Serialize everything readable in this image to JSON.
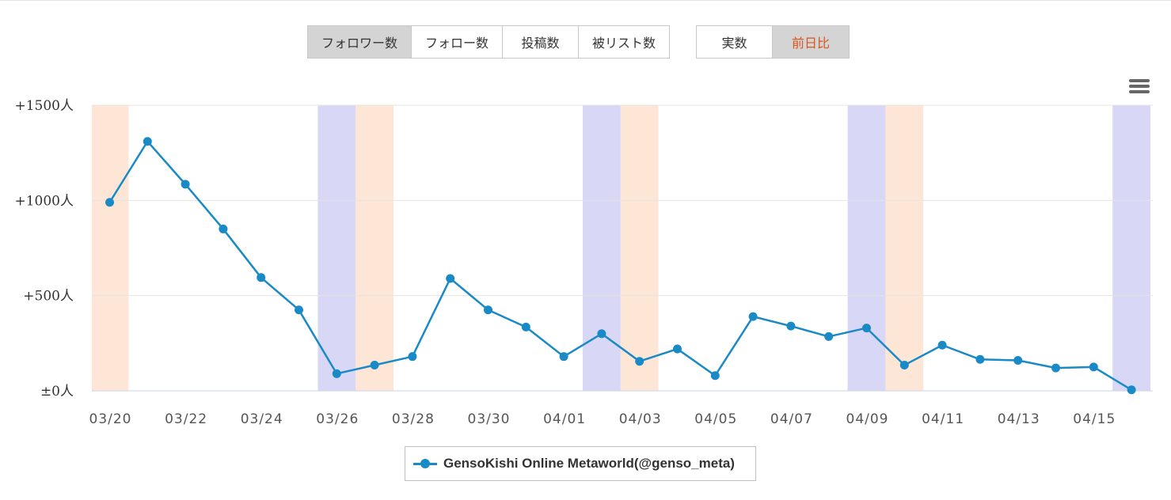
{
  "metric_buttons": [
    {
      "label": "フォロワー数",
      "active": true
    },
    {
      "label": "フォロー数",
      "active": false
    },
    {
      "label": "投稿数",
      "active": false
    },
    {
      "label": "被リスト数",
      "active": false
    }
  ],
  "mode_buttons": [
    {
      "label": "実数",
      "active": false
    },
    {
      "label": "前日比",
      "active": true
    }
  ],
  "colors": {
    "line": "#1a8ac6",
    "saturday_band": "#d8d8f6",
    "sunday_band": "#fde6d6",
    "active_button": "#d4d4d4",
    "accent_text": "#d9541e"
  },
  "icons": {
    "menu": "hamburger-menu-icon"
  },
  "chart_data": {
    "type": "line",
    "x": [
      "03/20",
      "03/21",
      "03/22",
      "03/23",
      "03/24",
      "03/25",
      "03/26",
      "03/27",
      "03/28",
      "03/29",
      "03/30",
      "03/31",
      "04/01",
      "04/02",
      "04/03",
      "04/04",
      "04/05",
      "04/06",
      "04/07",
      "04/08",
      "04/09",
      "04/10",
      "04/11",
      "04/12",
      "04/13",
      "04/14",
      "04/15",
      "04/16"
    ],
    "x_tick_labels": [
      "03/20",
      "03/22",
      "03/24",
      "03/26",
      "03/28",
      "03/30",
      "04/01",
      "04/03",
      "04/05",
      "04/07",
      "04/09",
      "04/11",
      "04/13",
      "04/15"
    ],
    "y_tick_labels": [
      "±0人",
      "+500人",
      "+1000人",
      "+1500人"
    ],
    "y_ticks": [
      0,
      500,
      1000,
      1500
    ],
    "ylim": [
      0,
      1500
    ],
    "grid": true,
    "legend": "bottom-center",
    "series": [
      {
        "name": "GensoKishi Online Metaworld(@genso_meta)",
        "values": [
          990,
          1310,
          1085,
          850,
          595,
          425,
          90,
          135,
          180,
          590,
          425,
          335,
          180,
          300,
          155,
          220,
          80,
          390,
          340,
          285,
          330,
          135,
          240,
          165,
          160,
          120,
          125,
          5
        ]
      }
    ],
    "saturday_bands": [
      "03/26",
      "04/02",
      "04/09",
      "04/16"
    ],
    "sunday_bands": [
      "03/20",
      "03/27",
      "04/03",
      "04/10"
    ]
  }
}
